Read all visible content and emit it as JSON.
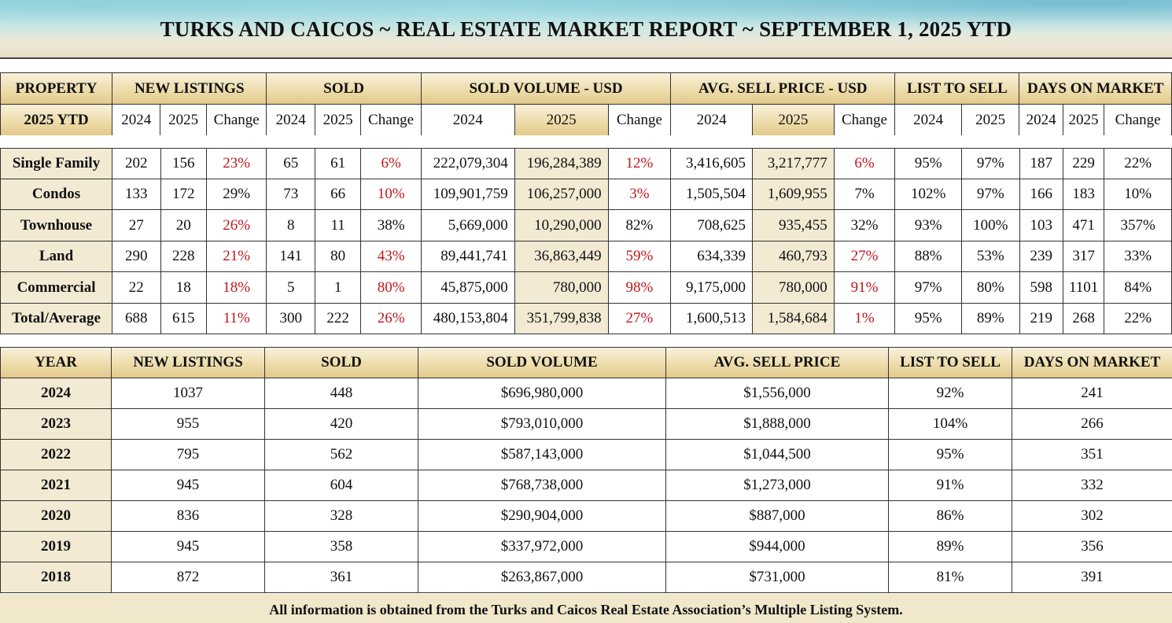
{
  "title": "TURKS AND CAICOS ~ REAL ESTATE MARKET REPORT ~  SEPTEMBER 1, 2025 YTD",
  "ytd_table": {
    "groups": [
      "PROPERTY",
      "NEW LISTINGS",
      "SOLD",
      "SOLD VOLUME - USD",
      "AVG. SELL PRICE - USD",
      "LIST TO SELL",
      "DAYS ON MARKET"
    ],
    "subheaders": [
      "2025 YTD",
      "2024",
      "2025",
      "Change",
      "2024",
      "2025",
      "Change",
      "2024",
      "2025",
      "Change",
      "2024",
      "2025",
      "Change",
      "2024",
      "2025",
      "2024",
      "2025",
      "Change"
    ],
    "rows": [
      {
        "label": "Single Family",
        "cells": [
          "202",
          "156",
          "23%",
          "65",
          "61",
          "6%",
          "222,079,304",
          "196,284,389",
          "12%",
          "3,416,605",
          "3,217,777",
          "6%",
          "95%",
          "97%",
          "187",
          "229",
          "22%"
        ]
      },
      {
        "label": "Condos",
        "cells": [
          "133",
          "172",
          "29%",
          "73",
          "66",
          "10%",
          "109,901,759",
          "106,257,000",
          "3%",
          "1,505,504",
          "1,609,955",
          "7%",
          "102%",
          "97%",
          "166",
          "183",
          "10%"
        ]
      },
      {
        "label": "Townhouse",
        "cells": [
          "27",
          "20",
          "26%",
          "8",
          "11",
          "38%",
          "5,669,000",
          "10,290,000",
          "82%",
          "708,625",
          "935,455",
          "32%",
          "93%",
          "100%",
          "103",
          "471",
          "357%"
        ]
      },
      {
        "label": "Land",
        "cells": [
          "290",
          "228",
          "21%",
          "141",
          "80",
          "43%",
          "89,441,741",
          "36,863,449",
          "59%",
          "634,339",
          "460,793",
          "27%",
          "88%",
          "53%",
          "239",
          "317",
          "33%"
        ]
      },
      {
        "label": "Commercial",
        "cells": [
          "22",
          "18",
          "18%",
          "5",
          "1",
          "80%",
          "45,875,000",
          "780,000",
          "98%",
          "9,175,000",
          "780,000",
          "91%",
          "97%",
          "80%",
          "598",
          "1101",
          "84%"
        ]
      },
      {
        "label": "Total/Average",
        "cells": [
          "688",
          "615",
          "11%",
          "300",
          "222",
          "26%",
          "480,153,804",
          "351,799,838",
          "27%",
          "1,600,513",
          "1,584,684",
          "1%",
          "95%",
          "89%",
          "219",
          "268",
          "22%"
        ]
      }
    ],
    "red_flags": [
      [
        0,
        0,
        1,
        0,
        0,
        1,
        0,
        0,
        1,
        0,
        0,
        1,
        0,
        0,
        0,
        0,
        0
      ],
      [
        0,
        0,
        0,
        0,
        0,
        1,
        0,
        0,
        1,
        0,
        0,
        0,
        0,
        0,
        0,
        0,
        0
      ],
      [
        0,
        0,
        1,
        0,
        0,
        0,
        0,
        0,
        0,
        0,
        0,
        0,
        0,
        0,
        0,
        0,
        0
      ],
      [
        0,
        0,
        1,
        0,
        0,
        1,
        0,
        0,
        1,
        0,
        0,
        1,
        0,
        0,
        0,
        0,
        0
      ],
      [
        0,
        0,
        1,
        0,
        0,
        1,
        0,
        0,
        1,
        0,
        0,
        1,
        0,
        0,
        0,
        0,
        0
      ],
      [
        0,
        0,
        1,
        0,
        0,
        1,
        0,
        0,
        1,
        0,
        0,
        1,
        0,
        0,
        0,
        0,
        0
      ]
    ]
  },
  "annual_table": {
    "headers": [
      "YEAR",
      "NEW LISTINGS",
      "SOLD",
      "SOLD VOLUME",
      "AVG. SELL PRICE",
      "LIST TO SELL",
      "DAYS ON MARKET"
    ],
    "rows": [
      [
        "2024",
        "1037",
        "448",
        "$696,980,000",
        "$1,556,000",
        "92%",
        "241"
      ],
      [
        "2023",
        "955",
        "420",
        "$793,010,000",
        "$1,888,000",
        "104%",
        "266"
      ],
      [
        "2022",
        "795",
        "562",
        "$587,143,000",
        "$1,044,500",
        "95%",
        "351"
      ],
      [
        "2021",
        "945",
        "604",
        "$768,738,000",
        "$1,273,000",
        "91%",
        "332"
      ],
      [
        "2020",
        "836",
        "328",
        "$290,904,000",
        "$887,000",
        "86%",
        "302"
      ],
      [
        "2019",
        "945",
        "358",
        "$337,972,000",
        "$944,000",
        "89%",
        "356"
      ],
      [
        "2018",
        "872",
        "361",
        "$263,867,000",
        "$731,000",
        "81%",
        "391"
      ]
    ]
  },
  "footer": "All information is obtained from the Turks and Caicos Real Estate Association’s Multiple Listing System.",
  "colors": {
    "negative_change": "#c0171c",
    "header_gold": "#eddcaa",
    "label_beige": "#f3ead3"
  }
}
